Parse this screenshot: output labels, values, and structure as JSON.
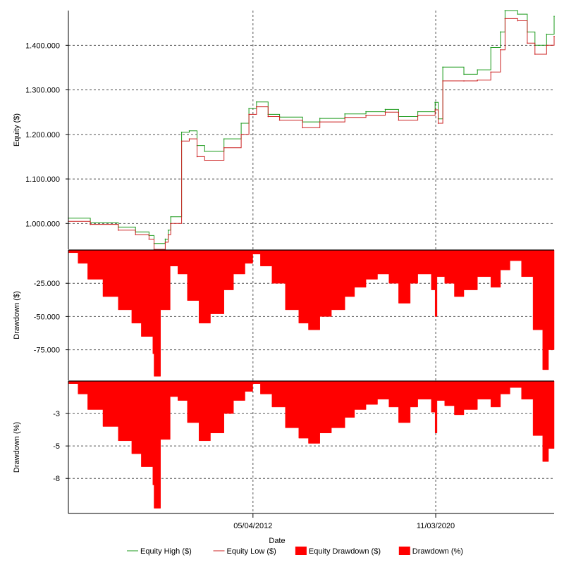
{
  "chart_data": {
    "type": "line",
    "xlabel": "Date",
    "x_tick_labels": [
      "05/04/2012",
      "11/03/2020"
    ],
    "x_range": [
      "2004-04-01",
      "2025-05-01"
    ],
    "colors": {
      "equity_high": "#1a9a1a",
      "equity_low": "#cc2222",
      "drawdown": "#ff0000",
      "grid": "#555555"
    },
    "legend": {
      "position": "bottom",
      "items": [
        {
          "label": "Equity High ($)",
          "kind": "line",
          "color": "#1a9a1a"
        },
        {
          "label": "Equity Low ($)",
          "kind": "line",
          "color": "#cc2222"
        },
        {
          "label": "Equity Drawdown ($)",
          "kind": "box",
          "color": "#ff0000"
        },
        {
          "label": "Drawdown (%)",
          "kind": "box",
          "color": "#ff0000"
        }
      ]
    },
    "panels": [
      {
        "id": "equity",
        "ylabel": "Equity ($)",
        "ylim": [
          942000,
          1478000
        ],
        "ticks": [
          1000000,
          1100000,
          1200000,
          1300000,
          1400000
        ],
        "tick_labels": [
          "1.000.000",
          "1.100.000",
          "1.200.000",
          "1.300.000",
          "1.400.000"
        ],
        "series": [
          {
            "name": "Equity High ($)",
            "color": "#1a9a1a",
            "x": [
              "2004-04-01",
              "2005-03-15",
              "2006-06-01",
              "2007-03-01",
              "2007-10-01",
              "2007-12-20",
              "2008-06-15",
              "2008-08-01",
              "2008-09-10",
              "2009-03-01",
              "2009-07-01",
              "2009-11-01",
              "2010-03-01",
              "2011-01-01",
              "2011-10-01",
              "2012-02-01",
              "2012-06-01",
              "2012-12-01",
              "2013-06-01",
              "2014-06-01",
              "2015-03-01",
              "2016-04-01",
              "2017-03-01",
              "2018-01-01",
              "2018-08-01",
              "2019-06-01",
              "2020-03-01",
              "2020-04-20",
              "2020-07-01",
              "2021-06-01",
              "2022-01-01",
              "2022-08-01",
              "2023-01-01",
              "2023-03-15",
              "2023-10-01",
              "2024-03-01",
              "2024-07-01",
              "2025-01-01",
              "2025-05-01"
            ],
            "y": [
              1012000,
              1002000,
              992000,
              981000,
              973000,
              955000,
              965000,
              985000,
              1015000,
              1205000,
              1208000,
              1175000,
              1162000,
              1190000,
              1225000,
              1258000,
              1273000,
              1245000,
              1239000,
              1228000,
              1236000,
              1246000,
              1251000,
              1256000,
              1240000,
              1251000,
              1272000,
              1235000,
              1351000,
              1335000,
              1345000,
              1395000,
              1430000,
              1478000,
              1470000,
              1430000,
              1400000,
              1425000,
              1465000
            ]
          },
          {
            "name": "Equity Low ($)",
            "color": "#cc2222",
            "x": [
              "2004-04-01",
              "2005-03-15",
              "2006-06-01",
              "2007-03-01",
              "2007-10-01",
              "2007-12-20",
              "2008-06-15",
              "2008-08-01",
              "2008-09-10",
              "2009-03-01",
              "2009-07-01",
              "2009-11-01",
              "2010-03-01",
              "2011-01-01",
              "2011-10-01",
              "2012-02-01",
              "2012-06-01",
              "2012-12-01",
              "2013-06-01",
              "2014-06-01",
              "2015-03-01",
              "2016-04-01",
              "2017-03-01",
              "2018-01-01",
              "2018-08-01",
              "2019-06-01",
              "2020-03-01",
              "2020-04-20",
              "2020-07-01",
              "2021-06-01",
              "2022-01-01",
              "2022-08-01",
              "2023-01-01",
              "2023-03-15",
              "2023-10-01",
              "2024-03-01",
              "2024-07-01",
              "2025-01-01",
              "2025-05-01"
            ],
            "y": [
              1005000,
              998000,
              985000,
              975000,
              965000,
              942000,
              958000,
              975000,
              1000000,
              1185000,
              1190000,
              1150000,
              1142000,
              1170000,
              1200000,
              1245000,
              1262000,
              1240000,
              1232000,
              1215000,
              1228000,
              1238000,
              1243000,
              1250000,
              1232000,
              1243000,
              1255000,
              1225000,
              1320000,
              1320000,
              1322000,
              1340000,
              1390000,
              1460000,
              1455000,
              1405000,
              1380000,
              1400000,
              1420000
            ]
          }
        ]
      },
      {
        "id": "drawdown_usd",
        "ylabel": "Drawdown ($)",
        "ylim": [
          -98000,
          0
        ],
        "ticks": [
          -25000,
          -50000,
          -75000
        ],
        "tick_labels": [
          "-25.000",
          "-50.000",
          "-75.000"
        ],
        "series": [
          {
            "name": "Equity Drawdown ($)",
            "color": "#ff0000",
            "x": [
              "2004-04-01",
              "2004-09-01",
              "2005-02-01",
              "2005-10-01",
              "2006-06-01",
              "2007-01-01",
              "2007-06-01",
              "2007-12-01",
              "2007-12-20",
              "2008-04-01",
              "2008-09-01",
              "2009-01-01",
              "2009-06-01",
              "2009-12-01",
              "2010-06-01",
              "2011-01-01",
              "2011-06-01",
              "2011-12-01",
              "2012-04-01",
              "2012-08-01",
              "2013-02-01",
              "2013-09-01",
              "2014-04-01",
              "2014-09-01",
              "2015-03-01",
              "2015-09-01",
              "2016-04-01",
              "2016-09-01",
              "2017-03-01",
              "2017-09-01",
              "2018-03-01",
              "2018-08-01",
              "2019-02-01",
              "2019-06-01",
              "2020-01-01",
              "2020-03-01",
              "2020-04-01",
              "2020-08-01",
              "2021-01-01",
              "2021-06-01",
              "2022-01-01",
              "2022-08-01",
              "2023-01-01",
              "2023-06-01",
              "2023-12-01",
              "2024-06-01",
              "2024-11-01",
              "2025-02-01",
              "2025-05-01"
            ],
            "y": [
              -2000,
              -10000,
              -22000,
              -35000,
              -45000,
              -55000,
              -65000,
              -78000,
              -95000,
              -45000,
              -12000,
              -18000,
              -38000,
              -55000,
              -48000,
              -30000,
              -18000,
              -10000,
              -3000,
              -12000,
              -25000,
              -45000,
              -55000,
              -60000,
              -50000,
              -45000,
              -35000,
              -28000,
              -22000,
              -18000,
              -25000,
              -40000,
              -25000,
              -18000,
              -30000,
              -50000,
              -20000,
              -25000,
              -35000,
              -30000,
              -20000,
              -28000,
              -15000,
              -8000,
              -20000,
              -60000,
              -90000,
              -75000,
              -50000
            ]
          }
        ]
      },
      {
        "id": "drawdown_pct",
        "ylabel": "Drawdown (%)",
        "ylim": [
          -10.2,
          0
        ],
        "ticks": [
          -2.5,
          -5,
          -7.5
        ],
        "tick_labels": [
          "-3",
          "-5",
          "-8"
        ],
        "series": [
          {
            "name": "Drawdown (%)",
            "color": "#ff0000",
            "x": [
              "2004-04-01",
              "2004-09-01",
              "2005-02-01",
              "2005-10-01",
              "2006-06-01",
              "2007-01-01",
              "2007-06-01",
              "2007-12-01",
              "2007-12-20",
              "2008-04-01",
              "2008-09-01",
              "2009-01-01",
              "2009-06-01",
              "2009-12-01",
              "2010-06-01",
              "2011-01-01",
              "2011-06-01",
              "2011-12-01",
              "2012-04-01",
              "2012-08-01",
              "2013-02-01",
              "2013-09-01",
              "2014-04-01",
              "2014-09-01",
              "2015-03-01",
              "2015-09-01",
              "2016-04-01",
              "2016-09-01",
              "2017-03-01",
              "2017-09-01",
              "2018-03-01",
              "2018-08-01",
              "2019-02-01",
              "2019-06-01",
              "2020-01-01",
              "2020-03-01",
              "2020-04-01",
              "2020-08-01",
              "2021-01-01",
              "2021-06-01",
              "2022-01-01",
              "2022-08-01",
              "2023-01-01",
              "2023-06-01",
              "2023-12-01",
              "2024-06-01",
              "2024-11-01",
              "2025-02-01",
              "2025-05-01"
            ],
            "y": [
              -0.2,
              -1.0,
              -2.2,
              -3.5,
              -4.6,
              -5.6,
              -6.6,
              -8.0,
              -9.8,
              -4.5,
              -1.2,
              -1.5,
              -3.2,
              -4.6,
              -4.0,
              -2.5,
              -1.5,
              -0.8,
              -0.2,
              -1.0,
              -2.0,
              -3.6,
              -4.4,
              -4.8,
              -4.0,
              -3.6,
              -2.8,
              -2.2,
              -1.8,
              -1.4,
              -2.0,
              -3.2,
              -2.0,
              -1.4,
              -2.4,
              -4.0,
              -1.5,
              -1.9,
              -2.6,
              -2.2,
              -1.4,
              -2.0,
              -1.0,
              -0.5,
              -1.4,
              -4.2,
              -6.2,
              -5.2,
              -3.5
            ]
          }
        ]
      }
    ]
  }
}
